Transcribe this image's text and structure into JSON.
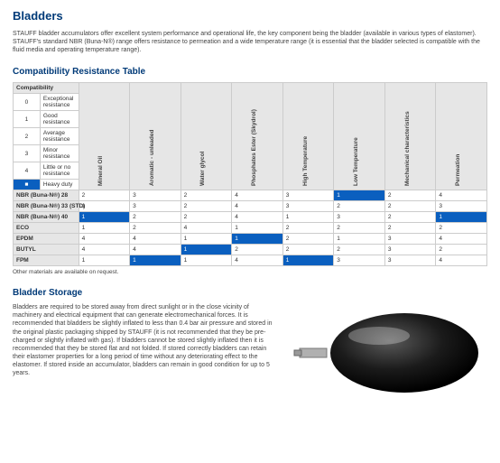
{
  "title": "Bladders",
  "intro": "STAUFF bladder accumulators offer excellent system performance and operational life, the key component being the bladder (available in various types of elastomer). STAUFF's standard NBR (Buna-N®) range offers resistance to permeation and a wide temperature range (it is essential that the bladder selected is compatible with the fluid media and operating temperature range).",
  "section_table": "Compatibility Resistance Table",
  "compat_header": "Compatibility",
  "legend": [
    {
      "k": "0",
      "t": "Exceptional resistance"
    },
    {
      "k": "1",
      "t": "Good resistance"
    },
    {
      "k": "2",
      "t": "Average resistance"
    },
    {
      "k": "3",
      "t": "Minor resistance"
    },
    {
      "k": "4",
      "t": "Little or no resistance"
    },
    {
      "k": "Shaded",
      "t": "Heavy duty"
    }
  ],
  "columns": [
    "Mineral Oil",
    "Aromatic - unleaded",
    "Water glycol",
    "Phosphates Ester (Skydrol)",
    "High Temperature",
    "Low Temperature",
    "Mechanical characteristics",
    "Permeation"
  ],
  "rows": [
    {
      "m": "NBR (Buna-N®) 28",
      "v": [
        "2",
        "3",
        "2",
        "4",
        "3",
        "1",
        "2",
        "4"
      ],
      "hd": [
        0,
        0,
        0,
        0,
        0,
        1,
        0,
        0
      ]
    },
    {
      "m": "NBR (Buna-N®) 33 (STD)",
      "v": [
        "1",
        "3",
        "2",
        "4",
        "3",
        "2",
        "2",
        "3"
      ],
      "hd": [
        0,
        0,
        0,
        0,
        0,
        0,
        0,
        0
      ]
    },
    {
      "m": "NBR (Buna-N®) 40",
      "v": [
        "1",
        "2",
        "2",
        "4",
        "1",
        "3",
        "2",
        "1"
      ],
      "hd": [
        1,
        0,
        0,
        0,
        0,
        0,
        0,
        1
      ]
    },
    {
      "m": "ECO",
      "v": [
        "1",
        "2",
        "4",
        "1",
        "2",
        "2",
        "2",
        "2"
      ],
      "hd": [
        0,
        0,
        0,
        0,
        0,
        0,
        0,
        0
      ]
    },
    {
      "m": "EPDM",
      "v": [
        "4",
        "4",
        "1",
        "1",
        "2",
        "1",
        "3",
        "4"
      ],
      "hd": [
        0,
        0,
        0,
        1,
        0,
        0,
        0,
        0
      ]
    },
    {
      "m": "BUTYL",
      "v": [
        "4",
        "4",
        "1",
        "2",
        "2",
        "2",
        "3",
        "2"
      ],
      "hd": [
        0,
        0,
        1,
        0,
        0,
        0,
        0,
        0
      ]
    },
    {
      "m": "FPM",
      "v": [
        "1",
        "1",
        "1",
        "4",
        "1",
        "3",
        "3",
        "4"
      ],
      "hd": [
        0,
        1,
        0,
        0,
        1,
        0,
        0,
        0
      ]
    }
  ],
  "footnote": "Other materials are available on request.",
  "section_storage": "Bladder Storage",
  "storage_text": "Bladders are required to be stored away from direct sunlight or in the close vicinity of machinery and electrical equipment that can generate electromechanical forces. It is recommended that bladders be slightly inflated to less than 0.4 bar air pressure and stored in the original plastic packaging shipped by STAUFF (it is not recommended that they be pre-charged or slightly inflated with gas). If bladders cannot be stored slightly inflated then it is recommended that they be stored flat and not folded. If stored correctly bladders can retain their elastomer properties for a long period of time without any deteriorating effect to the elastomer. If stored inside an accumulator, bladders can remain in good condition for up to 5 years.",
  "colors": {
    "brand": "#003a78",
    "heavy": "#0a5fbf",
    "grid": "#cccccc",
    "altbg": "#e6e6e6"
  }
}
